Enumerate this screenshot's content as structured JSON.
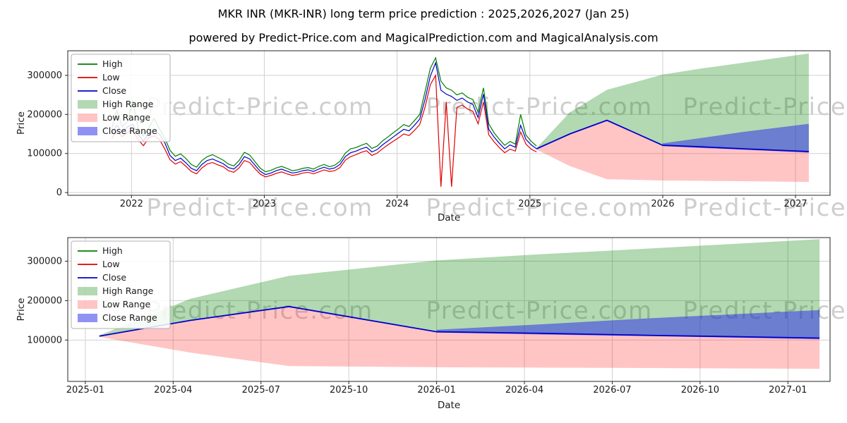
{
  "title": "MKR INR (MKR-INR) long term price prediction : 2025,2026,2027 (Jan 25)",
  "subtitle": "powered by Predict-Price.com and MagicalPrediction.com and MagicalAnalysis.com",
  "watermark": "Predict-Price.com",
  "colors": {
    "high": "#007f00",
    "low": "#e10000",
    "close": "#0000cc",
    "high_range": "rgba(0,128,0,0.30)",
    "low_range": "rgba(255,45,45,0.28)",
    "close_range": "rgba(35,35,235,0.50)",
    "grid": "#d0d0d0",
    "spine": "#262626",
    "watermark_gray": "#9e9e9e"
  },
  "legend": [
    {
      "label": "High",
      "swatch": "line",
      "color": "high"
    },
    {
      "label": "Low",
      "swatch": "line",
      "color": "low"
    },
    {
      "label": "Close",
      "swatch": "line",
      "color": "close"
    },
    {
      "label": "High Range",
      "swatch": "patch",
      "color": "high_range"
    },
    {
      "label": "Low Range",
      "swatch": "patch",
      "color": "low_range"
    },
    {
      "label": "Close Range",
      "swatch": "patch",
      "color": "close_range"
    }
  ],
  "chart_data": [
    {
      "type": "line",
      "name": "history-forecast-chart",
      "xlabel": "Date",
      "ylabel": "Price",
      "xlim": [
        2021.52,
        2027.26
      ],
      "ylim": [
        -7000,
        363000
      ],
      "x_ticks": [
        2022,
        2023,
        2024,
        2025,
        2026,
        2027
      ],
      "x_tick_labels": [
        "2022",
        "2023",
        "2024",
        "2025",
        "2026",
        "2027"
      ],
      "y_ticks": [
        0,
        100000,
        200000,
        300000
      ],
      "y_tick_labels": [
        "0",
        "100000",
        "200000",
        "300000"
      ],
      "historical": {
        "x": [
          2021.85,
          2021.89,
          2021.93,
          2021.97,
          2022.01,
          2022.05,
          2022.09,
          2022.13,
          2022.17,
          2022.21,
          2022.25,
          2022.29,
          2022.33,
          2022.37,
          2022.41,
          2022.45,
          2022.49,
          2022.53,
          2022.57,
          2022.61,
          2022.65,
          2022.69,
          2022.73,
          2022.77,
          2022.81,
          2022.85,
          2022.89,
          2022.93,
          2022.97,
          2023.01,
          2023.05,
          2023.09,
          2023.13,
          2023.17,
          2023.21,
          2023.25,
          2023.29,
          2023.33,
          2023.37,
          2023.41,
          2023.45,
          2023.49,
          2023.53,
          2023.57,
          2023.61,
          2023.65,
          2023.69,
          2023.73,
          2023.77,
          2023.81,
          2023.85,
          2023.89,
          2023.93,
          2023.97,
          2024.01,
          2024.05,
          2024.09,
          2024.13,
          2024.17,
          2024.21,
          2024.25,
          2024.29,
          2024.33,
          2024.37,
          2024.41,
          2024.45,
          2024.49,
          2024.53,
          2024.57,
          2024.61,
          2024.65,
          2024.69,
          2024.73,
          2024.77,
          2024.81,
          2024.85,
          2024.89,
          2024.93,
          2024.97,
          2025.01,
          2025.05
        ],
        "close": [
          150000,
          172000,
          155000,
          168000,
          175000,
          148000,
          132000,
          152000,
          158000,
          150000,
          128000,
          95000,
          82000,
          88000,
          76000,
          62000,
          56000,
          72000,
          82000,
          86000,
          80000,
          74000,
          64000,
          60000,
          72000,
          92000,
          86000,
          70000,
          54000,
          46000,
          50000,
          56000,
          60000,
          55000,
          50000,
          52000,
          56000,
          58000,
          54000,
          60000,
          65000,
          60000,
          63000,
          72000,
          92000,
          102000,
          106000,
          112000,
          116000,
          104000,
          110000,
          122000,
          132000,
          142000,
          152000,
          162000,
          158000,
          172000,
          188000,
          238000,
          298000,
          332000,
          262000,
          252000,
          246000,
          236000,
          242000,
          232000,
          226000,
          192000,
          252000,
          162000,
          142000,
          126000,
          112000,
          122000,
          116000,
          172000,
          136000,
          122000,
          112000
        ],
        "high": [
          163000,
          210000,
          168000,
          182000,
          236000,
          163000,
          145000,
          166000,
          190000,
          163000,
          140000,
          108000,
          93000,
          99000,
          87000,
          72000,
          65000,
          82000,
          92000,
          97000,
          90000,
          83000,
          73000,
          68000,
          82000,
          103000,
          96000,
          79000,
          62000,
          53000,
          57000,
          63000,
          67000,
          62000,
          56000,
          58000,
          62000,
          64000,
          60000,
          67000,
          72000,
          66000,
          70000,
          80000,
          101000,
          112000,
          115000,
          121000,
          126000,
          113000,
          119000,
          132000,
          142000,
          153000,
          163000,
          174000,
          169000,
          184000,
          200000,
          258000,
          318000,
          345000,
          285000,
          268000,
          262000,
          250000,
          255000,
          244000,
          238000,
          206000,
          268000,
          176000,
          153000,
          136000,
          121000,
          131000,
          124000,
          200000,
          147000,
          131000,
          119000
        ],
        "low": [
          138000,
          158000,
          143000,
          155000,
          160000,
          135000,
          120000,
          140000,
          145000,
          136000,
          112000,
          84000,
          73000,
          79000,
          67000,
          54000,
          48000,
          63000,
          73000,
          77000,
          71000,
          66000,
          56000,
          52000,
          63000,
          82000,
          77000,
          61000,
          47000,
          40000,
          44000,
          49000,
          53000,
          48000,
          44000,
          46000,
          50000,
          52000,
          48000,
          53000,
          58000,
          54000,
          56000,
          64000,
          83000,
          92000,
          97000,
          103000,
          107000,
          95000,
          101000,
          112000,
          122000,
          131000,
          140000,
          150000,
          146000,
          159000,
          174000,
          218000,
          276000,
          300000,
          15000,
          232000,
          15000,
          218000,
          224000,
          214000,
          208000,
          176000,
          232000,
          148000,
          130000,
          115000,
          102000,
          111000,
          106000,
          155000,
          124000,
          111000,
          104000
        ]
      },
      "forecast": {
        "x": [
          2025.05,
          2025.3,
          2025.58,
          2026.0,
          2026.3,
          2026.6,
          2027.1
        ],
        "close": [
          112000,
          150000,
          185000,
          121000,
          117000,
          112000,
          105000
        ],
        "high_upper": [
          114000,
          205000,
          263000,
          302000,
          318000,
          332000,
          356000
        ],
        "low_lower": [
          110000,
          68000,
          34000,
          31000,
          30000,
          29000,
          27000
        ]
      },
      "close_band": {
        "x": [
          2026.0,
          2026.3,
          2026.6,
          2027.1
        ],
        "upper": [
          126000,
          140000,
          155000,
          176000
        ],
        "lower": [
          119000,
          114000,
          110000,
          102000
        ]
      }
    },
    {
      "type": "line",
      "name": "forecast-detail-chart",
      "xlabel": "Date",
      "ylabel": "Price",
      "xlim": [
        2024.95,
        2027.12
      ],
      "ylim": [
        -5000,
        360000
      ],
      "x_ticks": [
        2025.0,
        2025.25,
        2025.5,
        2025.75,
        2026.0,
        2026.25,
        2026.5,
        2026.75,
        2027.0
      ],
      "x_tick_labels": [
        "2025-01",
        "2025-04",
        "2025-07",
        "2025-10",
        "2026-01",
        "2026-04",
        "2026-07",
        "2026-10",
        "2027-01"
      ],
      "y_ticks": [
        100000,
        200000,
        300000
      ],
      "y_tick_labels": [
        "100000",
        "200000",
        "300000"
      ],
      "forecast": {
        "x": [
          2025.04,
          2025.3,
          2025.58,
          2026.0,
          2026.3,
          2026.6,
          2027.09
        ],
        "close": [
          110000,
          150000,
          185000,
          121000,
          117000,
          112000,
          105000
        ],
        "high_upper": [
          112000,
          205000,
          263000,
          302000,
          318000,
          332000,
          356000
        ],
        "low_lower": [
          108000,
          68000,
          34000,
          31000,
          30000,
          29000,
          27000
        ]
      },
      "close_band": {
        "x": [
          2026.0,
          2026.3,
          2026.6,
          2027.09
        ],
        "upper": [
          126000,
          140000,
          155000,
          176000
        ],
        "lower": [
          119000,
          114000,
          110000,
          102000
        ]
      }
    }
  ]
}
